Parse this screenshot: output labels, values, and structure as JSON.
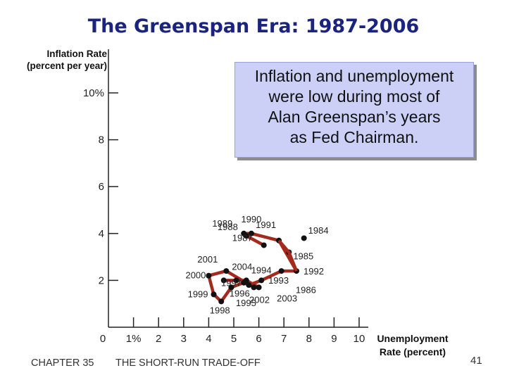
{
  "title": "The Greenspan Era:  1987-2006",
  "callout": {
    "lines": [
      "Inflation and unemployment",
      "were low during most of",
      "Alan Greenspan’s years",
      "as Fed Chairman."
    ]
  },
  "footer": {
    "chapter": "CHAPTER 35",
    "topic": "THE SHORT-RUN TRADE-OFF",
    "page": "41"
  },
  "colors": {
    "title": "#1a237e",
    "series_line": "#a52a1e",
    "marker": "#111111",
    "callout_bg": "#ccd0f7"
  },
  "chart_data": {
    "type": "line",
    "xlabel": [
      "Unemployment",
      "Rate (percent)"
    ],
    "ylabel": [
      "Inflation Rate",
      "(percent per year)"
    ],
    "xlim": [
      0,
      10.5
    ],
    "ylim": [
      0,
      10.5
    ],
    "x_ticks": [
      {
        "value": 0,
        "label": "0"
      },
      {
        "value": 1,
        "label": "1%"
      },
      {
        "value": 2,
        "label": "2"
      },
      {
        "value": 3,
        "label": "3"
      },
      {
        "value": 4,
        "label": "4"
      },
      {
        "value": 5,
        "label": "5"
      },
      {
        "value": 6,
        "label": "6"
      },
      {
        "value": 7,
        "label": "7"
      },
      {
        "value": 8,
        "label": "8"
      },
      {
        "value": 9,
        "label": "9"
      },
      {
        "value": 10,
        "label": "10"
      }
    ],
    "y_ticks": [
      {
        "value": 2,
        "label": "2"
      },
      {
        "value": 4,
        "label": "4"
      },
      {
        "value": 6,
        "label": "6"
      },
      {
        "value": 8,
        "label": "8"
      },
      {
        "value": 10,
        "label": "10%"
      }
    ],
    "grid": false,
    "points": [
      {
        "year": "1987",
        "x": 6.2,
        "y": 3.5
      },
      {
        "year": "1988",
        "x": 5.5,
        "y": 3.9
      },
      {
        "year": "1989",
        "x": 5.4,
        "y": 4.0
      },
      {
        "year": "1990",
        "x": 5.7,
        "y": 4.0
      },
      {
        "year": "1991",
        "x": 6.8,
        "y": 3.7
      },
      {
        "year": "1992",
        "x": 7.5,
        "y": 2.4
      },
      {
        "year": "1993",
        "x": 6.9,
        "y": 2.4
      },
      {
        "year": "1994",
        "x": 6.1,
        "y": 2.0
      },
      {
        "year": "1995",
        "x": 5.6,
        "y": 1.8
      },
      {
        "year": "1996",
        "x": 5.4,
        "y": 1.9
      },
      {
        "year": "1997",
        "x": 4.9,
        "y": 1.7
      },
      {
        "year": "1998",
        "x": 4.5,
        "y": 1.1
      },
      {
        "year": "1999",
        "x": 4.2,
        "y": 1.4
      },
      {
        "year": "2000",
        "x": 4.0,
        "y": 2.2
      },
      {
        "year": "2001",
        "x": 4.7,
        "y": 2.4
      },
      {
        "year": "2002",
        "x": 5.8,
        "y": 1.7
      },
      {
        "year": "2003",
        "x": 6.0,
        "y": 1.7
      },
      {
        "year": "2004",
        "x": 5.5,
        "y": 2.0
      },
      {
        "year": "2005",
        "x": 5.1,
        "y": 2.0
      },
      {
        "year": "2006",
        "x": 4.6,
        "y": 2.0
      }
    ],
    "extra_labels": [
      "1984",
      "1985",
      "1986"
    ]
  }
}
